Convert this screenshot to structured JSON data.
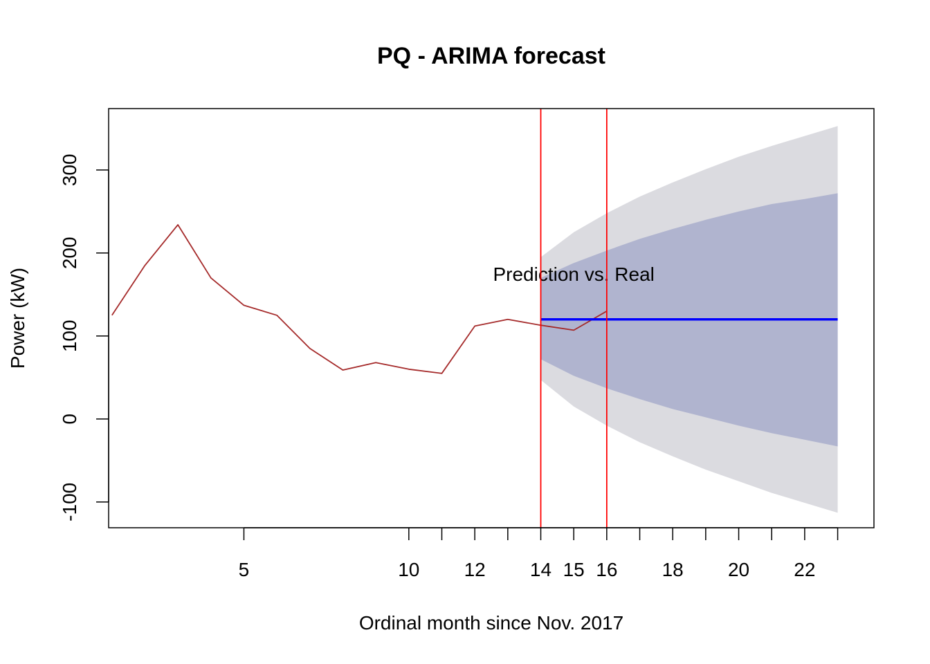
{
  "chart_data": {
    "type": "line",
    "title": "PQ - ARIMA forecast",
    "xlabel": "Ordinal month since Nov. 2017",
    "ylabel": "Power (kW)",
    "xlim": [
      0.9,
      24.1
    ],
    "ylim": [
      -131,
      374
    ],
    "x_ticks": [
      5,
      10,
      11,
      12,
      13,
      14,
      15,
      16,
      17,
      18,
      19,
      20,
      21,
      22,
      23
    ],
    "x_tick_labels": [
      "5",
      "10",
      "",
      "12",
      "",
      "14",
      "15",
      "16",
      "",
      "18",
      "",
      "20",
      "",
      "22",
      ""
    ],
    "y_ticks": [
      -100,
      0,
      100,
      200,
      300
    ],
    "y_tick_labels": [
      "-100",
      "0",
      "100",
      "200",
      "300"
    ],
    "grid": false,
    "series": [
      {
        "role": "observed",
        "color": "#a52a2a",
        "x": [
          1,
          2,
          3,
          4,
          5,
          6,
          7,
          8,
          9,
          10,
          11,
          12,
          13,
          14,
          15,
          16
        ],
        "values": [
          125,
          185,
          234,
          170,
          137,
          125,
          85,
          59,
          68,
          60,
          55,
          112,
          120,
          113,
          107,
          130
        ]
      },
      {
        "role": "forecast",
        "color": "#0000ff",
        "x": [
          14,
          23
        ],
        "values": [
          120,
          120
        ]
      }
    ],
    "interval_95": {
      "color": "#dbdbe0",
      "x": [
        14,
        15,
        16,
        17,
        18,
        19,
        20,
        21,
        22,
        23
      ],
      "lower": [
        47,
        15,
        -8,
        -28,
        -45,
        -61,
        -75,
        -89,
        -101,
        -113
      ],
      "upper": [
        195,
        225,
        248,
        268,
        285,
        301,
        316,
        329,
        341,
        353
      ]
    },
    "interval_80": {
      "color": "#b0b4cf",
      "x": [
        14,
        15,
        16,
        17,
        18,
        19,
        20,
        21,
        22,
        23
      ],
      "lower": [
        72,
        52,
        37,
        24,
        12,
        2,
        -8,
        -17,
        -25,
        -33
      ],
      "upper": [
        170,
        188,
        203,
        217,
        229,
        240,
        250,
        259,
        265,
        272
      ]
    },
    "vlines": {
      "color": "#ff0000",
      "x": [
        14,
        16
      ]
    },
    "annotation": {
      "text": "Prediction vs. Real",
      "x": 15,
      "y": 175
    }
  }
}
